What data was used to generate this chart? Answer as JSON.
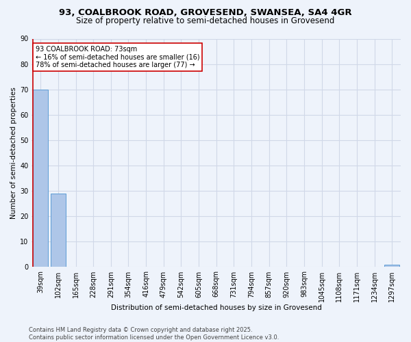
{
  "title_line1": "93, COALBROOK ROAD, GROVESEND, SWANSEA, SA4 4GR",
  "title_line2": "Size of property relative to semi-detached houses in Grovesend",
  "xlabel": "Distribution of semi-detached houses by size in Grovesend",
  "ylabel": "Number of semi-detached properties",
  "categories": [
    "39sqm",
    "102sqm",
    "165sqm",
    "228sqm",
    "291sqm",
    "354sqm",
    "416sqm",
    "479sqm",
    "542sqm",
    "605sqm",
    "668sqm",
    "731sqm",
    "794sqm",
    "857sqm",
    "920sqm",
    "983sqm",
    "1045sqm",
    "1108sqm",
    "1171sqm",
    "1234sqm",
    "1297sqm"
  ],
  "values": [
    70,
    29,
    0,
    0,
    0,
    0,
    0,
    0,
    0,
    0,
    0,
    0,
    0,
    0,
    0,
    0,
    0,
    0,
    0,
    0,
    1
  ],
  "bar_color": "#aec6e8",
  "bar_edge_color": "#5b9bd5",
  "grid_color": "#d0d8e8",
  "background_color": "#eef3fb",
  "red_line_x": 0,
  "annotation_title": "93 COALBROOK ROAD: 73sqm",
  "annotation_line1": "← 16% of semi-detached houses are smaller (16)",
  "annotation_line2": "78% of semi-detached houses are larger (77) →",
  "annotation_box_color": "#ffffff",
  "annotation_box_edge": "#cc0000",
  "red_line_color": "#cc0000",
  "ylim": [
    0,
    90
  ],
  "yticks": [
    0,
    10,
    20,
    30,
    40,
    50,
    60,
    70,
    80,
    90
  ],
  "footnote_line1": "Contains HM Land Registry data © Crown copyright and database right 2025.",
  "footnote_line2": "Contains public sector information licensed under the Open Government Licence v3.0."
}
